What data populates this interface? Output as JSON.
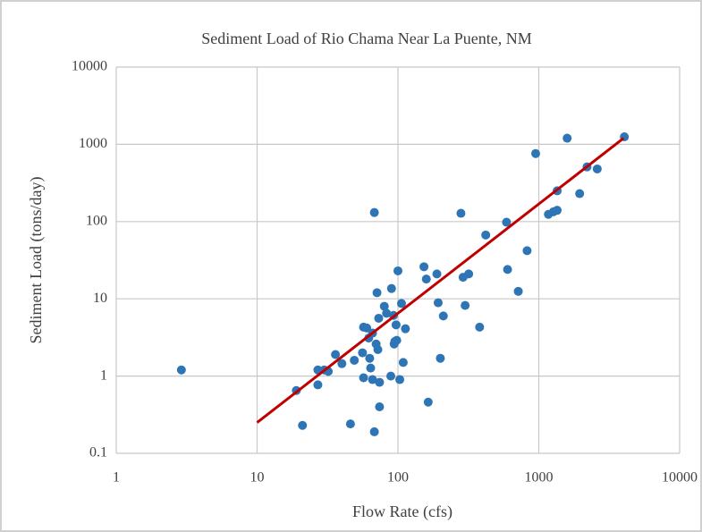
{
  "chart_data": {
    "type": "scatter",
    "title": "Sediment Load of Rio Chama Near La Puente, NM",
    "x_label": "Flow Rate (cfs)",
    "y_label": "Sediment Load (tons/day)",
    "log_x": true,
    "log_y": true,
    "grid": true,
    "xlim": [
      1,
      10000
    ],
    "ylim": [
      0.1,
      10000
    ],
    "xticks": [
      1,
      10,
      100,
      1000,
      10000
    ],
    "yticks": [
      0.1,
      1,
      10,
      100,
      1000,
      10000
    ],
    "series": [
      {
        "color": "#2e75b6",
        "x": [
          2.9,
          19,
          21,
          27,
          27,
          30,
          32,
          36,
          40,
          46,
          49,
          56,
          57,
          57,
          60,
          62,
          63,
          64,
          66,
          66,
          68,
          68,
          70,
          71,
          72,
          73,
          74,
          74,
          80,
          83,
          89,
          90,
          93,
          94,
          95,
          97,
          98,
          100,
          103,
          106,
          109,
          113,
          153,
          159,
          164,
          189,
          193,
          200,
          210,
          280,
          290,
          300,
          318,
          380,
          420,
          590,
          600,
          715,
          826,
          950,
          1170,
          1270,
          1350,
          1350,
          1590,
          1950,
          2200,
          2600,
          4050
        ],
        "values": [
          1.2,
          0.65,
          0.23,
          1.2,
          0.77,
          1.2,
          1.15,
          1.9,
          1.45,
          0.24,
          1.6,
          2.0,
          4.3,
          0.95,
          4.2,
          3.1,
          1.7,
          1.27,
          3.6,
          0.9,
          0.19,
          131,
          2.6,
          12,
          2.2,
          5.6,
          0.4,
          0.83,
          8,
          6.5,
          1,
          13.6,
          6.1,
          2.6,
          2.8,
          4.6,
          2.9,
          23,
          0.9,
          8.7,
          1.5,
          4.1,
          26,
          18,
          0.46,
          21,
          8.9,
          1.7,
          6,
          128,
          19,
          8.2,
          21,
          4.3,
          67,
          98,
          24,
          12.5,
          42,
          760,
          124,
          134,
          250,
          140,
          1200,
          230,
          510,
          480,
          1250
        ]
      }
    ],
    "trendline": {
      "color": "#c00000",
      "x": [
        10,
        4000
      ],
      "values": [
        0.25,
        1200
      ]
    }
  }
}
